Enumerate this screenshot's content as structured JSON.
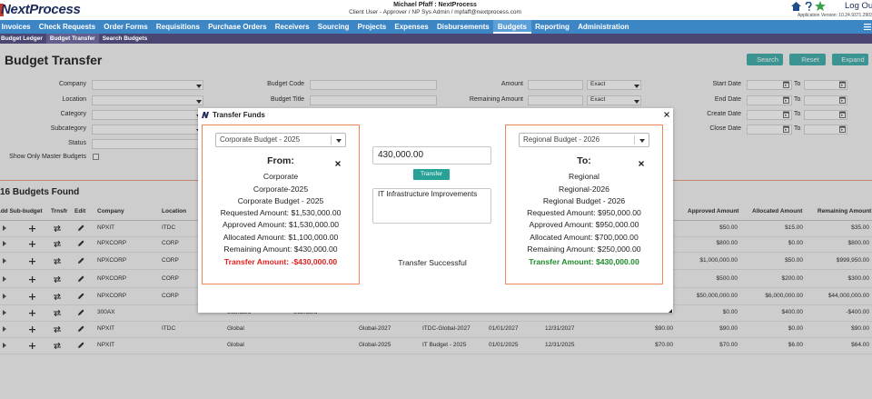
{
  "header": {
    "logo": "NextProcess",
    "user": "Michael Pfaff : NextProcess",
    "role": "Client User - Approver / NP Sys Admin / mpfaff@nextprocess.com",
    "logout": "Log Out",
    "version": "Application Version: 10.24.9371.29037"
  },
  "nav": [
    {
      "label": "Invoices"
    },
    {
      "label": "Check Requests"
    },
    {
      "label": "Order Forms"
    },
    {
      "label": "Requisitions"
    },
    {
      "label": "Purchase Orders"
    },
    {
      "label": "Receivers"
    },
    {
      "label": "Sourcing"
    },
    {
      "label": "Projects"
    },
    {
      "label": "Expenses"
    },
    {
      "label": "Disbursements"
    },
    {
      "label": "Budgets",
      "active": true
    },
    {
      "label": "Reporting"
    },
    {
      "label": "Administration"
    }
  ],
  "subnav": [
    {
      "label": "Budget Ledger"
    },
    {
      "label": "Budget Transfer",
      "active": true
    },
    {
      "label": "Search Budgets"
    }
  ],
  "page": {
    "title": "Budget Transfer",
    "buttons": [
      "Search",
      "Reset",
      "Expand"
    ]
  },
  "filters": {
    "left": [
      "Company",
      "Location",
      "Category",
      "Subcategory",
      "Status"
    ],
    "master": "Show Only Master Budgets",
    "middle": [
      "Budget Code",
      "Budget Title"
    ],
    "amounts": [
      {
        "label": "Amount",
        "match": "Exact"
      },
      {
        "label": "Remaining Amount",
        "match": "Exact"
      }
    ],
    "dates": [
      {
        "label": "Start Date",
        "to": "To"
      },
      {
        "label": "End Date",
        "to": "To"
      },
      {
        "label": "Create Date",
        "to": "To"
      },
      {
        "label": "Close Date",
        "to": "To"
      }
    ]
  },
  "results": {
    "count": "16 Budgets Found",
    "headers": {
      "add": "Add Sub-budget",
      "trnsfr": "Trnsfr",
      "edit": "Edit",
      "company": "Company",
      "location": "Location",
      "approved": "Approved Amount",
      "allocated": "Allocated Amount",
      "remaining": "Remaining Amount"
    },
    "rows": [
      {
        "company": "NPXIT",
        "location": "ITDC",
        "approved": "$50.00",
        "allocated": "$15.00",
        "remaining": "$35.00"
      },
      {
        "company": "NPXCORP",
        "location": "CORP",
        "approved": "$800.00",
        "allocated": "$0.00",
        "remaining": "$800.00"
      },
      {
        "company": "NPXCORP",
        "location": "CORP",
        "approved": "$1,000,000.00",
        "allocated": "$50.00",
        "remaining": "$999,950.00"
      },
      {
        "company": "NPXCORP",
        "location": "CORP",
        "approved": "$500.00",
        "allocated": "$200.00",
        "remaining": "$300.00"
      },
      {
        "company": "NPXCORP",
        "location": "CORP",
        "approved": "$50,000,000.00",
        "allocated": "$6,000,000.00",
        "remaining": "$44,000,000.00"
      },
      {
        "company": "300AX",
        "type": "Standard",
        "group": "Standard",
        "approved": "$0.00",
        "allocated": "$400.00",
        "remaining": "-$400.00"
      },
      {
        "company": "NPXIT",
        "location": "ITDC",
        "type": "Global",
        "code": "Global-2027",
        "title": "ITDC-Global-2027",
        "start": "01/01/2027",
        "end": "12/31/2027",
        "amount": "$90.00",
        "approved": "$90.00",
        "allocated": "$0.00",
        "remaining": "$90.00"
      },
      {
        "company": "NPXIT",
        "type": "Global",
        "code": "Global-2025",
        "title": "IT Budget - 2025",
        "start": "01/01/2025",
        "end": "12/31/2025",
        "amount": "$70.00",
        "approved": "$70.00",
        "allocated": "$6.00",
        "remaining": "$64.00"
      }
    ]
  },
  "modal": {
    "title": "Transfer Funds",
    "from": {
      "select": "Corporate Budget - 2025",
      "heading": "From:",
      "lines": [
        "Corporate",
        "Corporate-2025",
        "Corporate Budget - 2025",
        "Requested Amount: $1,530,000.00",
        "Approved Amount: $1,530,000.00",
        "Allocated Amount: $1,100,000.00",
        "Remaining Amount: $430,000.00"
      ],
      "transfer": "Transfer Amount: -$430,000.00"
    },
    "amount": "430,000.00",
    "button": "Transfer",
    "note": "IT Infrastructure Improvements",
    "status": "Transfer Successful",
    "to": {
      "select": "Regional Budget - 2026",
      "heading": "To:",
      "lines": [
        "Regional",
        "Regional-2026",
        "Regional Budget - 2026",
        "Requested Amount: $950,000.00",
        "Approved Amount: $950,000.00",
        "Allocated Amount: $700,000.00",
        "Remaining Amount: $250,000.00"
      ],
      "transfer": "Transfer Amount: $430,000.00"
    }
  }
}
